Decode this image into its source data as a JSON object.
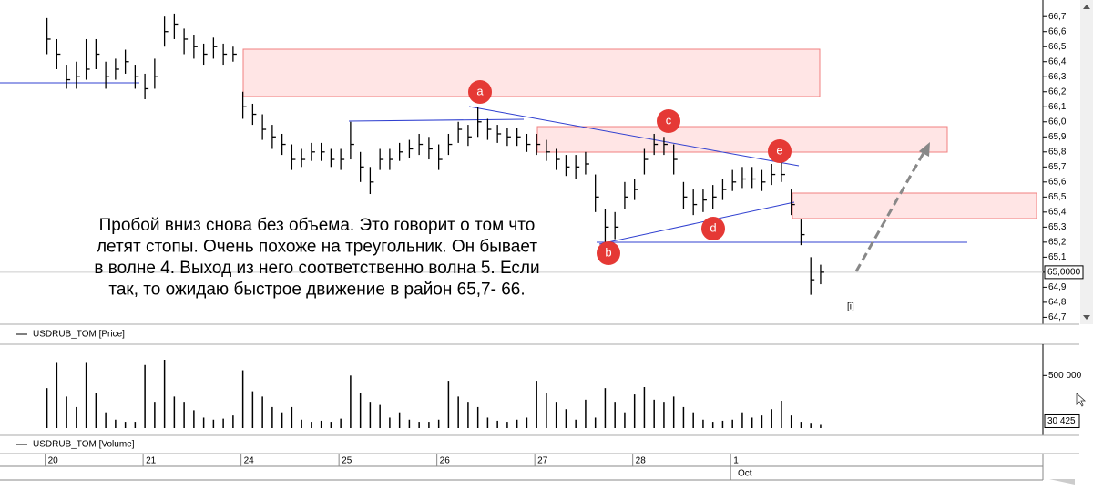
{
  "chart_data": [
    {
      "type": "ohlc",
      "name": "USDRUB_TOM [Price]",
      "high": [
        66.69,
        66.55,
        66.38,
        66.4,
        66.55,
        66.55,
        66.4,
        66.42,
        66.48,
        66.38,
        66.32,
        66.42,
        66.7,
        66.72,
        66.62,
        66.58,
        66.52,
        66.56,
        66.52,
        66.5,
        66.2,
        66.12,
        66.05,
        65.98,
        65.92,
        65.85,
        65.82,
        65.86,
        65.86,
        65.82,
        65.82,
        66.0,
        65.8,
        65.7,
        65.82,
        65.82,
        65.86,
        65.88,
        65.92,
        65.9,
        65.85,
        65.92,
        66.0,
        65.98,
        66.1,
        66.02,
        65.98,
        65.96,
        65.96,
        65.92,
        65.92,
        65.88,
        65.82,
        65.78,
        65.78,
        65.8,
        65.65,
        65.42,
        65.4,
        65.6,
        65.62,
        65.82,
        65.92,
        65.9,
        65.85,
        65.6,
        65.55,
        65.55,
        65.58,
        65.62,
        65.68,
        65.7,
        65.7,
        65.68,
        65.72,
        65.75,
        65.55,
        65.35,
        65.1,
        65.05
      ],
      "low": [
        66.45,
        66.35,
        66.22,
        66.22,
        66.28,
        66.35,
        66.22,
        66.28,
        66.32,
        66.22,
        66.15,
        66.22,
        66.5,
        66.55,
        66.45,
        66.42,
        66.38,
        66.42,
        66.38,
        66.4,
        66.02,
        65.98,
        65.88,
        65.82,
        65.78,
        65.68,
        65.7,
        65.74,
        65.74,
        65.7,
        65.68,
        65.75,
        65.6,
        65.52,
        65.68,
        65.68,
        65.74,
        65.76,
        65.78,
        65.75,
        65.68,
        65.78,
        65.86,
        65.84,
        65.9,
        65.88,
        65.86,
        65.84,
        65.84,
        65.8,
        65.78,
        65.74,
        65.68,
        65.64,
        65.62,
        65.65,
        65.4,
        65.2,
        65.22,
        65.42,
        65.48,
        65.65,
        65.78,
        65.78,
        65.65,
        65.42,
        65.38,
        65.4,
        65.42,
        65.48,
        65.54,
        65.56,
        65.56,
        65.54,
        65.58,
        65.6,
        65.38,
        65.18,
        64.85,
        64.92
      ],
      "close": [
        66.55,
        66.45,
        66.28,
        66.3,
        66.35,
        66.45,
        66.3,
        66.35,
        66.4,
        66.3,
        66.22,
        66.3,
        66.6,
        66.65,
        66.55,
        66.5,
        66.45,
        66.5,
        66.45,
        66.45,
        66.1,
        66.05,
        65.95,
        65.9,
        65.85,
        65.75,
        65.75,
        65.8,
        65.8,
        65.75,
        65.75,
        65.85,
        65.7,
        65.6,
        65.75,
        65.75,
        65.8,
        65.82,
        65.85,
        65.82,
        65.75,
        65.85,
        65.95,
        65.9,
        66.0,
        65.95,
        65.92,
        65.9,
        65.9,
        65.85,
        65.85,
        65.8,
        65.75,
        65.7,
        65.7,
        65.72,
        65.5,
        65.3,
        65.3,
        65.5,
        65.55,
        65.75,
        65.85,
        65.85,
        65.75,
        65.5,
        65.45,
        65.48,
        65.5,
        65.55,
        65.6,
        65.62,
        65.62,
        65.6,
        65.65,
        65.65,
        65.45,
        65.25,
        64.95,
        65.0
      ],
      "last_price": {
        "value": 65.0,
        "label": "65,0000"
      },
      "color": "#000000",
      "ylim": [
        64.66,
        66.78
      ],
      "yticks": [
        {
          "value": 64.7,
          "label": "64,7"
        },
        {
          "value": 64.8,
          "label": "64,8"
        },
        {
          "value": 64.9,
          "label": "64,9"
        },
        {
          "value": 65.0,
          "label": "65,0"
        },
        {
          "value": 65.1,
          "label": "65,1"
        },
        {
          "value": 65.2,
          "label": "65,2"
        },
        {
          "value": 65.3,
          "label": "65,3"
        },
        {
          "value": 65.4,
          "label": "65,4"
        },
        {
          "value": 65.5,
          "label": "65,5"
        },
        {
          "value": 65.6,
          "label": "65,6"
        },
        {
          "value": 65.7,
          "label": "65,7"
        },
        {
          "value": 65.8,
          "label": "65,8"
        },
        {
          "value": 65.9,
          "label": "65,9"
        },
        {
          "value": 66.0,
          "label": "66,0"
        },
        {
          "value": 66.1,
          "label": "66,1"
        },
        {
          "value": 66.2,
          "label": "66,2"
        },
        {
          "value": 66.3,
          "label": "66,3"
        },
        {
          "value": 66.4,
          "label": "66,4"
        },
        {
          "value": 66.5,
          "label": "66,5"
        },
        {
          "value": 66.6,
          "label": "66,6"
        },
        {
          "value": 66.7,
          "label": "66,7"
        }
      ],
      "annotation": [
        "Пробой вниз снова без объема. Это говорит о том что",
        "летят стопы. Очень похоже на треугольник. Он бывает",
        "в волне 4. Выход из него соответственно волна 5. Если",
        "так, то ожидаю быстрое движение в район 65,7- 66."
      ],
      "wave_labels": [
        "a",
        "b",
        "c",
        "d",
        "e",
        "[i]"
      ]
    },
    {
      "type": "volume",
      "name": "USDRUB_TOM [Volume]",
      "values": [
        380000,
        620000,
        300000,
        200000,
        620000,
        330000,
        150000,
        80000,
        60000,
        60000,
        600000,
        250000,
        650000,
        300000,
        250000,
        170000,
        100000,
        80000,
        90000,
        120000,
        550000,
        350000,
        300000,
        200000,
        150000,
        200000,
        80000,
        60000,
        70000,
        60000,
        90000,
        500000,
        330000,
        250000,
        220000,
        100000,
        150000,
        80000,
        60000,
        60000,
        80000,
        450000,
        300000,
        250000,
        200000,
        100000,
        70000,
        60000,
        80000,
        100000,
        450000,
        330000,
        250000,
        180000,
        80000,
        270000,
        100000,
        380000,
        250000,
        150000,
        320000,
        390000,
        270000,
        250000,
        300000,
        200000,
        150000,
        80000,
        60000,
        70000,
        80000,
        150000,
        100000,
        120000,
        180000,
        260000,
        120000,
        60000,
        50000,
        30425
      ],
      "last_volume": {
        "value": 30425,
        "label": "30 425"
      },
      "color": "#000000",
      "ylim": [
        0,
        780000
      ],
      "yticks": [
        {
          "value": 500000,
          "label": "500 000"
        }
      ]
    },
    {
      "type": "time-axis",
      "xlim": [
        -4.8,
        101.7
      ],
      "xticks": [
        {
          "value": 0,
          "label": "20"
        },
        {
          "value": 10,
          "label": "21"
        },
        {
          "value": 20,
          "label": "24"
        },
        {
          "value": 30,
          "label": "25"
        },
        {
          "value": 40,
          "label": "26"
        },
        {
          "value": 50,
          "label": "27"
        },
        {
          "value": 60,
          "label": "28"
        },
        {
          "value": 70,
          "label": "1"
        }
      ],
      "month_label": "Oct"
    }
  ]
}
